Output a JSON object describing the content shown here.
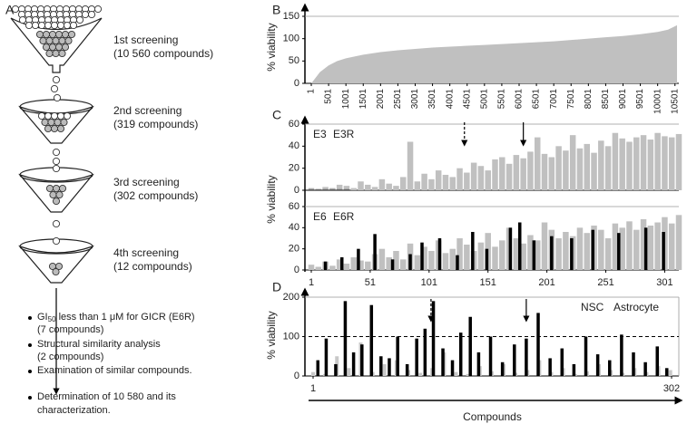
{
  "diagram": {
    "panel": "A",
    "steps": [
      {
        "title": "1st screening",
        "count": "(10 560 compounds)"
      },
      {
        "title": "2nd screening",
        "count": "(319 compounds)"
      },
      {
        "title": "3rd screening",
        "count": "(302 compounds)"
      },
      {
        "title": "4th screening",
        "count": "(12 compounds)"
      }
    ],
    "bullets": [
      {
        "label": "GI",
        "subscript": "50",
        "text": " less than 1 μM for GICR (E6R)",
        "note": "(7 compounds)"
      },
      {
        "text": "Structural similarity analysis",
        "note": "(2 compounds)"
      },
      {
        "text": "Examination of similar compounds."
      },
      {
        "text": "Determination of 10 580 and its",
        "note": "characterization."
      }
    ]
  },
  "chart_data": [
    {
      "panel": "B",
      "type": "area",
      "y_label": "% viability",
      "color": "#c0c0c0",
      "x": [
        1,
        100,
        250,
        500,
        750,
        1000,
        1250,
        1500,
        2000,
        2500,
        3000,
        3500,
        4000,
        4500,
        5000,
        5500,
        6000,
        6500,
        7000,
        7500,
        8000,
        8500,
        9000,
        9500,
        10000,
        10300,
        10560
      ],
      "values": [
        0,
        10,
        25,
        40,
        50,
        56,
        60,
        64,
        70,
        74,
        77,
        80,
        82,
        84,
        86,
        88,
        90,
        92,
        94,
        97,
        100,
        103,
        106,
        110,
        115,
        120,
        130
      ],
      "xlim": [
        1,
        10560
      ],
      "xticks": [
        1,
        501,
        1001,
        1501,
        2001,
        2501,
        3001,
        3501,
        4001,
        4501,
        5001,
        5501,
        6001,
        6501,
        7001,
        7501,
        8001,
        8501,
        9001,
        9501,
        10001,
        10501
      ],
      "ylim": [
        0,
        150
      ],
      "yticks": [
        0,
        50,
        100,
        150
      ]
    },
    {
      "panel": "C",
      "type": "bar",
      "y_label": "% viability",
      "legend": "top-left",
      "series": [
        {
          "name": "E3",
          "color": "#c0c0c0",
          "x": [
            1,
            7,
            13,
            19,
            25,
            31,
            37,
            43,
            49,
            55,
            61,
            67,
            73,
            79,
            85,
            91,
            97,
            103,
            109,
            115,
            121,
            127,
            133,
            139,
            145,
            151,
            157,
            163,
            169,
            175,
            181,
            187,
            193,
            199,
            205,
            211,
            217,
            223,
            229,
            235,
            241,
            247,
            253,
            259,
            265,
            271,
            277,
            283,
            289,
            295,
            301,
            307,
            313
          ],
          "values": [
            2,
            1,
            3,
            2,
            5,
            4,
            2,
            8,
            5,
            3,
            10,
            6,
            4,
            12,
            44,
            8,
            15,
            10,
            18,
            14,
            12,
            20,
            16,
            25,
            22,
            18,
            28,
            30,
            24,
            32,
            29,
            35,
            48,
            33,
            30,
            40,
            36,
            50,
            38,
            42,
            34,
            45,
            40,
            52,
            47,
            44,
            48,
            50,
            46,
            52,
            49,
            48,
            51
          ]
        },
        {
          "name": "E3R",
          "color": "#666666",
          "x": [
            1,
            7,
            13,
            19,
            25,
            31
          ],
          "values": [
            1,
            1,
            1,
            1,
            1,
            1
          ]
        }
      ],
      "xlim": [
        1,
        313
      ],
      "ylim": [
        0,
        60
      ],
      "yticks": [
        0,
        20,
        40,
        60
      ],
      "markers": [
        {
          "x": 131,
          "dashed": true
        },
        {
          "x": 181,
          "dashed": false
        }
      ]
    },
    {
      "type": "bar",
      "legend": "top-left",
      "series": [
        {
          "name": "E6",
          "color": "#c0c0c0",
          "x": [
            1,
            7,
            13,
            19,
            25,
            31,
            37,
            43,
            49,
            55,
            61,
            67,
            73,
            79,
            85,
            91,
            97,
            103,
            109,
            115,
            121,
            127,
            133,
            139,
            145,
            151,
            157,
            163,
            169,
            175,
            181,
            187,
            193,
            199,
            205,
            211,
            217,
            223,
            229,
            235,
            241,
            247,
            253,
            259,
            265,
            271,
            277,
            283,
            289,
            295,
            301,
            307,
            313
          ],
          "values": [
            5,
            3,
            8,
            4,
            10,
            6,
            12,
            9,
            8,
            15,
            20,
            12,
            18,
            10,
            25,
            14,
            22,
            18,
            28,
            16,
            20,
            30,
            24,
            18,
            26,
            35,
            22,
            28,
            40,
            30,
            25,
            33,
            28,
            45,
            38,
            30,
            36,
            32,
            40,
            35,
            42,
            38,
            30,
            44,
            40,
            46,
            38,
            48,
            42,
            45,
            50,
            44,
            52
          ]
        },
        {
          "name": "E6R",
          "color": "#000000",
          "x": [
            13,
            27,
            41,
            55,
            70,
            85,
            95,
            110,
            125,
            138,
            150,
            170,
            178,
            190,
            205,
            222,
            240,
            262,
            285,
            300
          ],
          "values": [
            8,
            12,
            20,
            34,
            10,
            15,
            26,
            30,
            14,
            36,
            20,
            40,
            45,
            28,
            32,
            30,
            38,
            35,
            40,
            36
          ]
        }
      ],
      "xlim": [
        1,
        313
      ],
      "xticks": [
        1,
        51,
        101,
        151,
        201,
        251,
        301
      ],
      "ylim": [
        0,
        60
      ],
      "yticks": [
        0,
        20,
        40,
        60
      ]
    },
    {
      "panel": "D",
      "type": "bar",
      "y_label": "% viability",
      "x_label": "Compounds",
      "legend": "top-right",
      "series": [
        {
          "name": "NSC",
          "color": "#c8c8c8",
          "x": [
            1,
            11,
            21,
            31,
            41,
            51,
            61,
            71,
            81,
            91,
            101,
            111,
            121,
            131,
            141,
            151,
            161,
            171,
            181,
            191,
            201,
            211,
            221,
            231,
            241,
            251,
            261,
            271,
            281,
            291,
            301
          ],
          "values": [
            10,
            5,
            50,
            20,
            85,
            10,
            30,
            40,
            15,
            8,
            20,
            60,
            10,
            5,
            25,
            12,
            30,
            8,
            15,
            40,
            10,
            20,
            5,
            12,
            30,
            15,
            8,
            20,
            10,
            25,
            15
          ]
        },
        {
          "name": "Astrocyte",
          "color": "#000000",
          "x": [
            5,
            12,
            20,
            28,
            35,
            42,
            50,
            58,
            65,
            72,
            80,
            88,
            95,
            102,
            110,
            118,
            125,
            133,
            140,
            150,
            160,
            170,
            180,
            190,
            200,
            210,
            220,
            230,
            240,
            250,
            260,
            270,
            280,
            290,
            298
          ],
          "values": [
            40,
            95,
            30,
            190,
            60,
            80,
            180,
            50,
            45,
            100,
            30,
            95,
            120,
            190,
            70,
            40,
            110,
            150,
            60,
            100,
            35,
            80,
            95,
            160,
            45,
            70,
            30,
            100,
            55,
            40,
            105,
            60,
            35,
            75,
            20
          ]
        }
      ],
      "xlim": [
        1,
        302
      ],
      "xticks": [
        1,
        302
      ],
      "ylim": [
        0,
        200
      ],
      "yticks": [
        0,
        100,
        200
      ],
      "hline": 100,
      "markers": [
        {
          "x": 100,
          "dashed": true
        },
        {
          "x": 180,
          "dashed": false
        }
      ]
    }
  ]
}
